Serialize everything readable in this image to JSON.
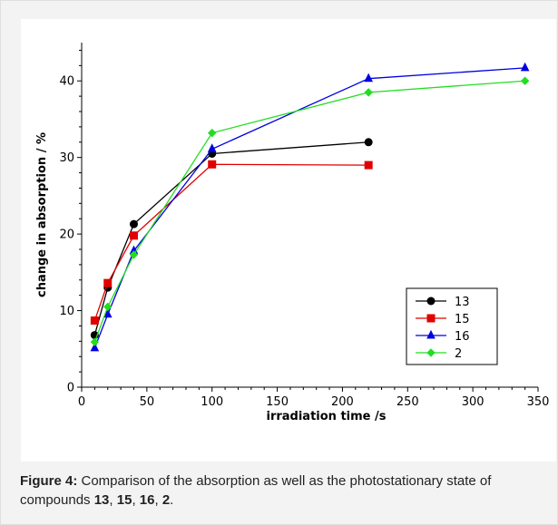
{
  "caption": {
    "label": "Figure 4:",
    "text_before": " Comparison of the absorption as well as the photostationary state of compounds ",
    "compounds": [
      "13",
      "15",
      "16",
      "2"
    ],
    "separator": ", ",
    "end": "."
  },
  "chart_data": {
    "type": "line",
    "title": "",
    "xlabel": "irradiation time /s",
    "ylabel": "change in absorption / %",
    "xlim": [
      0,
      350
    ],
    "ylim": [
      0,
      45
    ],
    "xticks": [
      0,
      50,
      100,
      150,
      200,
      250,
      300,
      350
    ],
    "yticks": [
      0,
      10,
      20,
      30,
      40
    ],
    "grid": false,
    "legend_position": "bottom-right",
    "series": [
      {
        "name": "13",
        "color": "#000000",
        "marker": "circle",
        "x": [
          10,
          20,
          40,
          100,
          220
        ],
        "y": [
          6.8,
          13.0,
          21.3,
          30.5,
          32.0
        ]
      },
      {
        "name": "15",
        "color": "#e00000",
        "marker": "square",
        "x": [
          10,
          20,
          40,
          100,
          220
        ],
        "y": [
          8.7,
          13.6,
          19.8,
          29.1,
          29.0
        ]
      },
      {
        "name": "16",
        "color": "#0000e0",
        "marker": "triangle",
        "x": [
          10,
          20,
          40,
          100,
          220,
          340
        ],
        "y": [
          5.1,
          9.5,
          17.8,
          31.1,
          40.3,
          41.7
        ]
      },
      {
        "name": "2",
        "color": "#22dd22",
        "marker": "diamond",
        "x": [
          10,
          20,
          40,
          100,
          220,
          340
        ],
        "y": [
          5.9,
          10.5,
          17.3,
          33.2,
          38.5,
          40.0
        ]
      }
    ]
  }
}
